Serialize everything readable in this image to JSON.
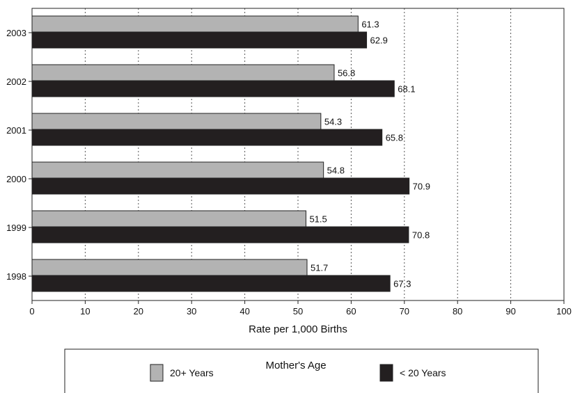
{
  "chart_data": {
    "type": "bar",
    "orientation": "horizontal",
    "categories": [
      "2003",
      "2002",
      "2001",
      "2000",
      "1999",
      "1998"
    ],
    "series": [
      {
        "name": "20+ Years",
        "color": "#b3b3b3",
        "values": [
          61.3,
          56.8,
          54.3,
          54.8,
          51.5,
          51.7
        ]
      },
      {
        "name": "< 20 Years",
        "color": "#231f20",
        "values": [
          62.9,
          68.1,
          65.8,
          70.9,
          70.8,
          67.3
        ]
      }
    ],
    "value_labels": [
      [
        "61.3",
        "56.8",
        "54.3",
        "54.8",
        "51.5",
        "51.7"
      ],
      [
        "62.9",
        "68.1",
        "65.8",
        "70.9",
        "70.8",
        "67.3"
      ]
    ],
    "xlabel": "Rate per 1,000 Births",
    "xlim": [
      0,
      100
    ],
    "xticks": [
      "0",
      "10",
      "20",
      "30",
      "40",
      "50",
      "60",
      "70",
      "80",
      "90",
      "100"
    ],
    "grid": "vertical dotted",
    "legend": {
      "title": "Mother's Age",
      "placement": "bottom-center"
    }
  }
}
